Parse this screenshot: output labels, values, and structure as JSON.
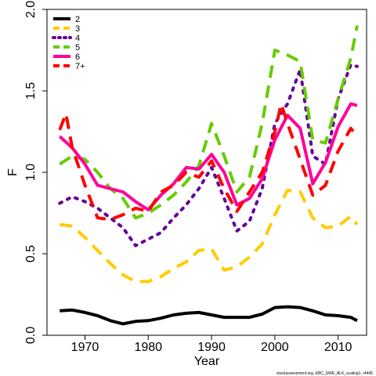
{
  "chart_data": {
    "type": "line",
    "xlabel": "Year",
    "ylabel": "F",
    "xlim": [
      1964,
      2014.5
    ],
    "ylim": [
      0,
      2.0
    ],
    "x_ticks": [
      1970,
      1980,
      1990,
      2000,
      2010
    ],
    "y_ticks": [
      0.0,
      0.5,
      1.0,
      1.5,
      2.0
    ],
    "y_tick_labels": [
      "0.0",
      "0.5",
      "1.0",
      "1.5",
      "2.0"
    ],
    "grid": false,
    "legend_position": "top-left",
    "footnote": "stockassessment.org, EBC_SWE_ALK_scaling1, r4445",
    "series": [
      {
        "name": "2",
        "color": "#000000",
        "dash": "solid",
        "x": [
          1966,
          1968,
          1970,
          1972,
          1974,
          1976,
          1978,
          1980,
          1982,
          1984,
          1986,
          1988,
          1990,
          1992,
          1994,
          1996,
          1998,
          2000,
          2002,
          2004,
          2006,
          2008,
          2010,
          2012,
          2013
        ],
        "values": [
          0.15,
          0.155,
          0.14,
          0.12,
          0.09,
          0.07,
          0.085,
          0.09,
          0.105,
          0.125,
          0.135,
          0.14,
          0.125,
          0.11,
          0.11,
          0.11,
          0.13,
          0.17,
          0.175,
          0.17,
          0.15,
          0.125,
          0.12,
          0.11,
          0.09
        ]
      },
      {
        "name": "3",
        "color": "#ffcc00",
        "dash": "dashed",
        "x": [
          1966,
          1968,
          1970,
          1972,
          1974,
          1976,
          1978,
          1980,
          1982,
          1984,
          1986,
          1988,
          1990,
          1992,
          1994,
          1996,
          1998,
          2000,
          2002,
          2004,
          2006,
          2008,
          2010,
          2012,
          2013
        ],
        "values": [
          0.68,
          0.67,
          0.6,
          0.52,
          0.44,
          0.37,
          0.33,
          0.33,
          0.36,
          0.41,
          0.45,
          0.52,
          0.53,
          0.4,
          0.42,
          0.48,
          0.56,
          0.74,
          0.89,
          0.88,
          0.72,
          0.66,
          0.67,
          0.73,
          0.68
        ]
      },
      {
        "name": "4",
        "color": "#660099",
        "dash": "dotted",
        "x": [
          1966,
          1968,
          1970,
          1972,
          1974,
          1976,
          1978,
          1980,
          1982,
          1984,
          1986,
          1988,
          1990,
          1992,
          1994,
          1996,
          1998,
          2000,
          2002,
          2004,
          2006,
          2008,
          2010,
          2012,
          2013
        ],
        "values": [
          0.81,
          0.85,
          0.82,
          0.78,
          0.72,
          0.66,
          0.55,
          0.59,
          0.63,
          0.72,
          0.8,
          0.9,
          1.03,
          0.84,
          0.64,
          0.7,
          0.9,
          1.3,
          1.42,
          1.63,
          1.1,
          1.05,
          1.45,
          1.66,
          1.65
        ]
      },
      {
        "name": "5",
        "color": "#66cc00",
        "dash": "dashed",
        "x": [
          1966,
          1968,
          1970,
          1972,
          1974,
          1976,
          1978,
          1980,
          1982,
          1984,
          1986,
          1988,
          1990,
          1992,
          1994,
          1996,
          1998,
          2000,
          2002,
          2004,
          2006,
          2008,
          2010,
          2012,
          2013
        ],
        "values": [
          1.05,
          1.1,
          1.08,
          1.0,
          0.9,
          0.84,
          0.72,
          0.75,
          0.8,
          0.86,
          0.94,
          1.04,
          1.3,
          1.1,
          0.88,
          0.97,
          1.3,
          1.75,
          1.72,
          1.68,
          1.2,
          1.18,
          1.45,
          1.7,
          1.9
        ]
      },
      {
        "name": "6",
        "color": "#ff0099",
        "dash": "solid",
        "x": [
          1966,
          1968,
          1970,
          1972,
          1974,
          1976,
          1978,
          1980,
          1982,
          1984,
          1986,
          1988,
          1990,
          1992,
          1994,
          1996,
          1998,
          2000,
          2002,
          2004,
          2006,
          2008,
          2010,
          2012,
          2013
        ],
        "values": [
          1.22,
          1.15,
          1.05,
          0.92,
          0.9,
          0.88,
          0.82,
          0.77,
          0.86,
          0.93,
          1.03,
          1.02,
          1.11,
          1.0,
          0.8,
          0.84,
          0.96,
          1.2,
          1.35,
          1.27,
          0.93,
          1.06,
          1.28,
          1.42,
          1.41
        ]
      },
      {
        "name": "7+",
        "color": "#ff0000",
        "dash": "dashed",
        "x": [
          1966,
          1967,
          1968,
          1970,
          1972,
          1974,
          1976,
          1978,
          1980,
          1982,
          1984,
          1986,
          1988,
          1990,
          1992,
          1994,
          1996,
          1998,
          2000,
          2001,
          2002,
          2004,
          2006,
          2008,
          2010,
          2012,
          2013
        ],
        "values": [
          1.26,
          1.36,
          1.15,
          0.92,
          0.72,
          0.71,
          0.74,
          0.78,
          0.76,
          0.88,
          0.92,
          1.0,
          0.97,
          1.07,
          0.9,
          0.76,
          0.88,
          1.0,
          1.25,
          1.42,
          1.3,
          1.08,
          0.86,
          0.92,
          1.13,
          1.27,
          1.22
        ]
      }
    ]
  }
}
